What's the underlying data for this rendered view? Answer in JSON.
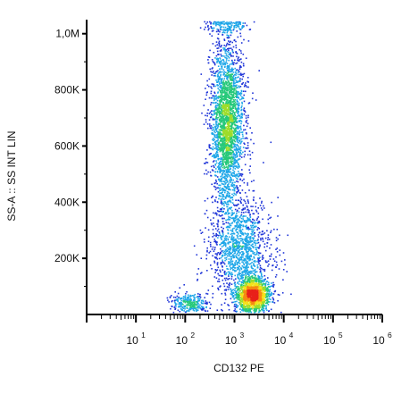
{
  "chart_data": {
    "type": "scatter",
    "style": "flow cytometry density dot plot (pseudocolor: blue=low, green, yellow, red=high density)",
    "xlabel": "CD132 PE",
    "ylabel": "SS-A :: SS INT LIN",
    "x_scale": "log",
    "xlim": [
      1,
      1000000
    ],
    "x_ticks": [
      {
        "value": 10,
        "base": "10",
        "exp": "1"
      },
      {
        "value": 100,
        "base": "10",
        "exp": "2"
      },
      {
        "value": 1000,
        "base": "10",
        "exp": "3"
      },
      {
        "value": 10000,
        "base": "10",
        "exp": "4"
      },
      {
        "value": 100000,
        "base": "10",
        "exp": "5"
      },
      {
        "value": 1000000,
        "base": "10",
        "exp": "6"
      }
    ],
    "y_scale": "linear",
    "ylim": [
      0,
      1050000
    ],
    "y_ticks": [
      {
        "value": 200000,
        "label": "200K"
      },
      {
        "value": 400000,
        "label": "400K"
      },
      {
        "value": 600000,
        "label": "600K"
      },
      {
        "value": 800000,
        "label": "800K"
      },
      {
        "value": 1000000,
        "label": "1,0M"
      }
    ],
    "grid": false,
    "populations": [
      {
        "center_x": 700,
        "center_y": 680000,
        "spread_log_x": 0.17,
        "spread_y": 150000,
        "count": 2600
      },
      {
        "center_x": 2300,
        "center_y": 70000,
        "spread_log_x": 0.17,
        "spread_y": 28000,
        "count": 1500
      },
      {
        "center_x": 120,
        "center_y": 40000,
        "spread_log_x": 0.2,
        "spread_y": 18000,
        "count": 280
      },
      {
        "center_x": 1300,
        "center_y": 230000,
        "spread_log_x": 0.32,
        "spread_y": 90000,
        "count": 1300
      },
      {
        "center_x": 700,
        "center_y": 1030000,
        "spread_log_x": 0.22,
        "spread_y": 15000,
        "count": 120
      }
    ],
    "density_colors": [
      "#1e34d8",
      "#1fa7e8",
      "#27c97a",
      "#9edc2a",
      "#f4e21b",
      "#f58a12",
      "#e8201a"
    ]
  }
}
